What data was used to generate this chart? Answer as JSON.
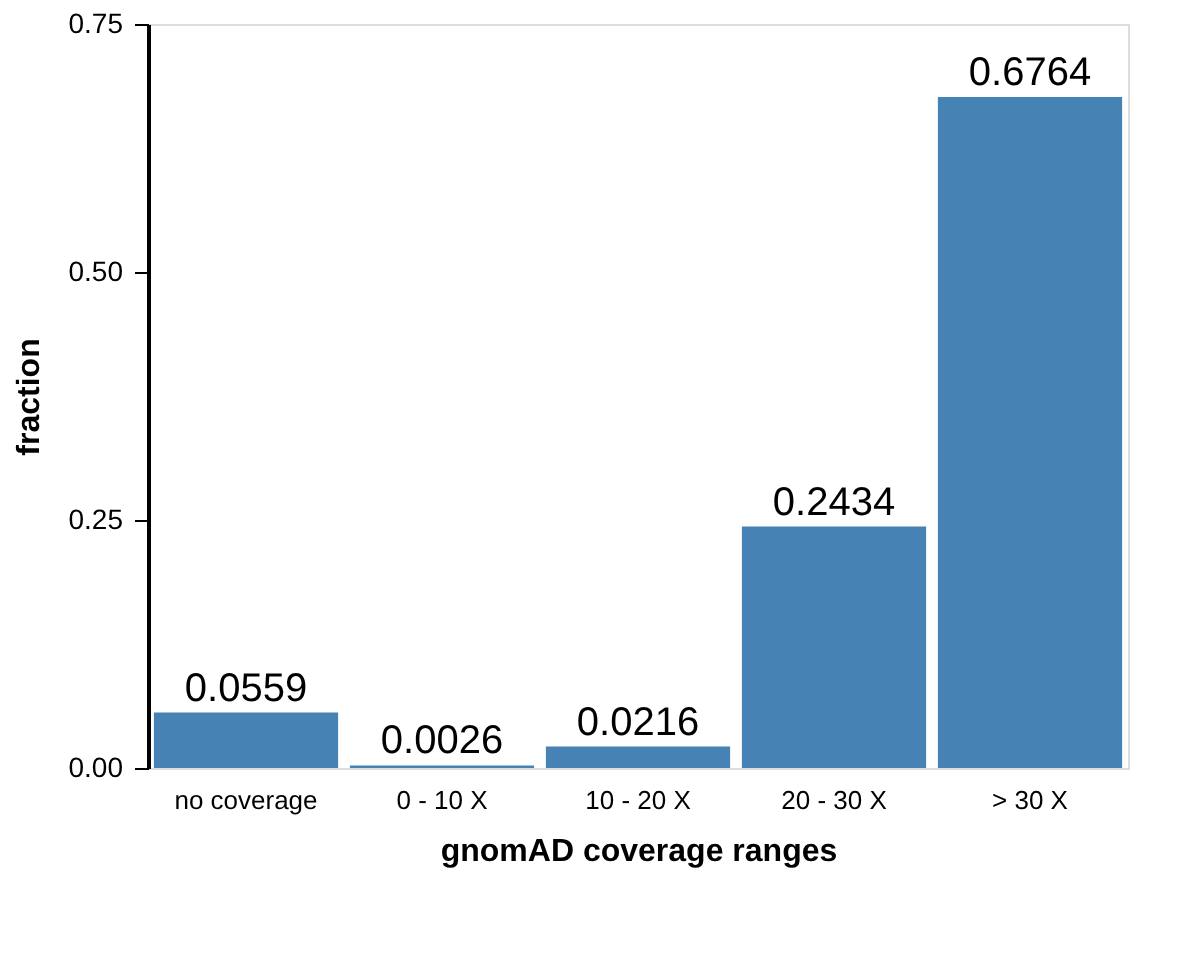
{
  "chart_data": {
    "type": "bar",
    "xlabel": "gnomAD coverage ranges",
    "ylabel": "fraction",
    "categories": [
      "no coverage",
      "0 - 10 X",
      "10 - 20 X",
      "20 - 30 X",
      "> 30 X"
    ],
    "values": [
      0.0559,
      0.0026,
      0.0216,
      0.2434,
      0.6764
    ],
    "color": "#4682b4",
    "ylim": [
      0,
      0.75
    ],
    "yticks": [
      {
        "value": 0,
        "label": "0.00"
      },
      {
        "value": 0.25,
        "label": "0.25"
      },
      {
        "value": 0.5,
        "label": "0.50"
      },
      {
        "value": 0.75,
        "label": "0.75"
      }
    ],
    "grid": false,
    "data_labels": true
  }
}
